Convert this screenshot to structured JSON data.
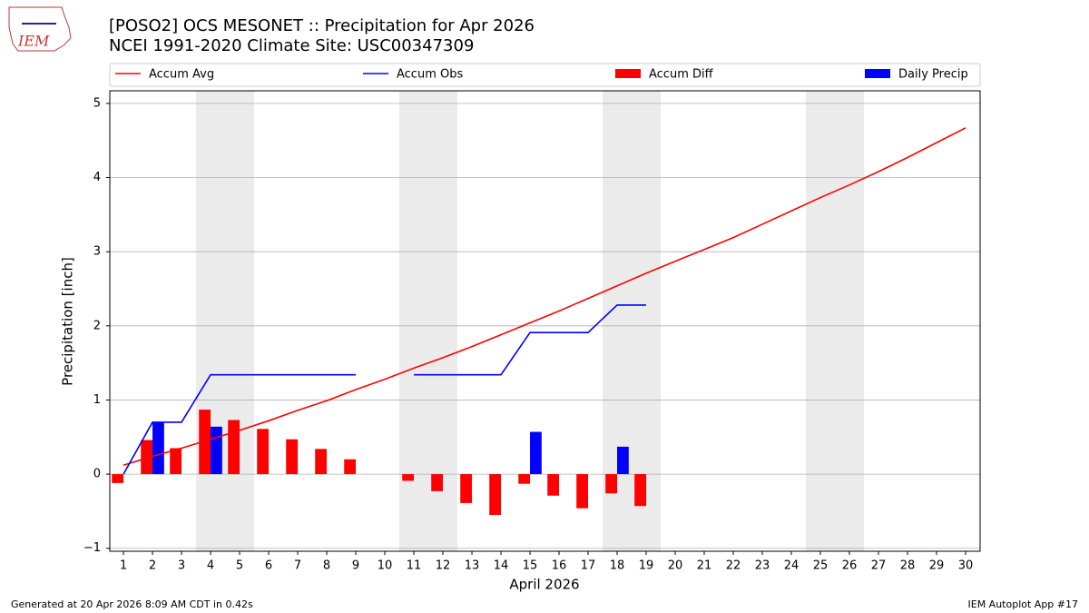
{
  "logo_text": "IEM",
  "chart_data": {
    "type": "combo",
    "title": "[POSO2] OCS MESONET :: Precipitation for Apr 2026",
    "subtitle": "NCEI 1991-2020 Climate Site: USC00347309",
    "x_label": "April 2026",
    "y_label": "Precipitation [inch]",
    "x": [
      1,
      2,
      3,
      4,
      5,
      6,
      7,
      8,
      9,
      10,
      11,
      12,
      13,
      14,
      15,
      16,
      17,
      18,
      19,
      20,
      21,
      22,
      23,
      24,
      25,
      26,
      27,
      28,
      29,
      30
    ],
    "series": [
      {
        "name": "Accum Avg",
        "type": "line",
        "color": "#ff0000",
        "values": [
          0.12,
          0.24,
          0.35,
          0.47,
          0.59,
          0.72,
          0.86,
          0.99,
          1.14,
          1.28,
          1.43,
          1.57,
          1.72,
          1.88,
          2.04,
          2.2,
          2.37,
          2.54,
          2.71,
          2.87,
          3.03,
          3.19,
          3.37,
          3.55,
          3.73,
          3.9,
          4.08,
          4.27,
          4.47,
          4.67
        ]
      },
      {
        "name": "Accum Obs",
        "type": "line",
        "color": "#0000ff",
        "values": [
          0.0,
          0.7,
          0.7,
          1.34,
          1.34,
          1.34,
          1.34,
          1.34,
          1.34,
          null,
          1.34,
          1.34,
          1.34,
          1.34,
          1.91,
          1.91,
          1.91,
          2.28,
          2.28,
          null,
          null,
          null,
          null,
          null,
          null,
          null,
          null,
          null,
          null,
          null
        ]
      },
      {
        "name": "Accum Diff",
        "type": "bar",
        "color": "#ff0000",
        "values": [
          -0.12,
          0.46,
          0.35,
          0.87,
          0.73,
          0.61,
          0.47,
          0.34,
          0.2,
          null,
          -0.09,
          -0.23,
          -0.39,
          -0.55,
          -0.13,
          -0.29,
          -0.46,
          -0.26,
          -0.43,
          null,
          null,
          null,
          null,
          null,
          null,
          null,
          null,
          null,
          null,
          null
        ]
      },
      {
        "name": "Daily Precip",
        "type": "bar",
        "color": "#0000ff",
        "values": [
          0,
          0.7,
          0,
          0.64,
          0,
          0,
          0,
          0,
          0,
          null,
          0,
          0,
          0,
          0,
          0.57,
          0,
          0,
          0.37,
          0,
          null,
          null,
          null,
          null,
          null,
          null,
          null,
          null,
          null,
          null,
          null
        ]
      }
    ],
    "weekend_spans": [
      [
        3.5,
        5.5
      ],
      [
        10.5,
        12.5
      ],
      [
        17.5,
        19.5
      ],
      [
        24.5,
        26.5
      ]
    ],
    "xlim": [
      0.53,
      30.5
    ],
    "xticks": [
      1,
      2,
      3,
      4,
      5,
      6,
      7,
      8,
      9,
      10,
      11,
      12,
      13,
      14,
      15,
      16,
      17,
      18,
      19,
      20,
      21,
      22,
      23,
      24,
      25,
      26,
      27,
      28,
      29,
      30
    ],
    "ylim": [
      -1.04,
      5.17
    ],
    "yticks": [
      {
        "value": -1,
        "label": "−1"
      },
      0,
      1,
      2,
      3,
      4,
      5
    ],
    "grid": true
  },
  "footer_left": "Generated at 20 Apr 2026 8:09 AM CDT in 0.42s",
  "footer_right": "IEM Autoplot App #17"
}
